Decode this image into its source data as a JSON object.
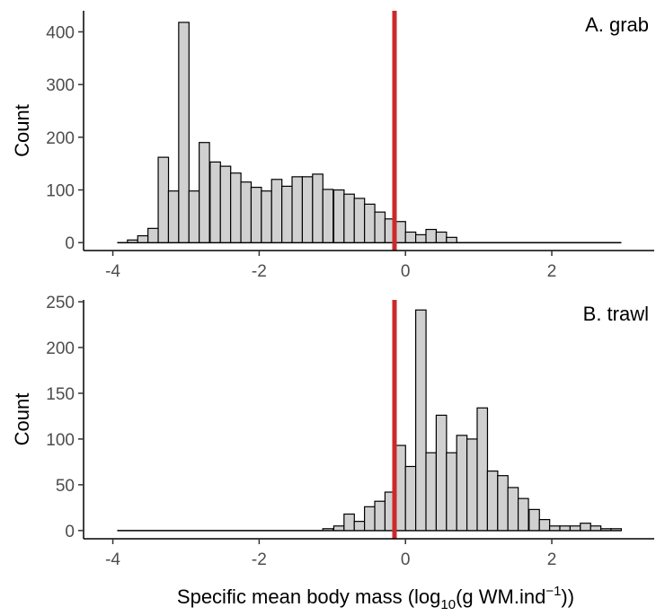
{
  "chart_data": [
    {
      "type": "bar",
      "panel_label": "A. grab",
      "ylabel": "Count",
      "xlim": [
        -4.4,
        3.4
      ],
      "ylim": [
        -15,
        440
      ],
      "x_ticks": [
        -4,
        -2,
        0,
        2
      ],
      "y_ticks": [
        0,
        100,
        200,
        300,
        400
      ],
      "bin_width": 0.141,
      "bins_start": [
        -3.94,
        -3.8,
        -3.66,
        -3.52,
        -3.38,
        -3.24,
        -3.1,
        -2.96,
        -2.82,
        -2.67,
        -2.53,
        -2.39,
        -2.25,
        -2.11,
        -1.97,
        -1.83,
        -1.69,
        -1.55,
        -1.41,
        -1.27,
        -1.13,
        -0.98,
        -0.84,
        -0.7,
        -0.56,
        -0.42,
        -0.28,
        -0.14,
        0.0,
        0.14,
        0.28,
        0.42,
        0.56,
        0.7,
        0.84,
        0.98,
        1.12,
        1.26,
        1.4,
        1.54,
        1.69,
        1.83,
        1.97,
        2.11,
        2.25,
        2.39,
        2.53,
        2.67,
        2.81
      ],
      "counts": [
        0,
        5,
        13,
        27,
        162,
        98,
        418,
        98,
        190,
        153,
        145,
        132,
        115,
        105,
        98,
        120,
        107,
        125,
        125,
        130,
        101,
        100,
        92,
        84,
        73,
        58,
        45,
        40,
        20,
        15,
        25,
        20,
        10,
        0,
        0,
        0,
        0,
        0,
        0,
        0,
        0,
        0,
        0,
        0,
        0,
        0,
        0,
        0,
        0
      ],
      "reference_line_x": -0.15,
      "reference_line_color": "#cc2a2a",
      "bar_fill": "#d0d0d0",
      "bar_stroke": "#000000"
    },
    {
      "type": "bar",
      "panel_label": "B. trawl",
      "ylabel": "Count",
      "xlim": [
        -4.4,
        3.4
      ],
      "ylim": [
        -9,
        252
      ],
      "x_ticks": [
        -4,
        -2,
        0,
        2
      ],
      "y_ticks": [
        0,
        50,
        100,
        150,
        200,
        250
      ],
      "bin_width": 0.141,
      "bins_start": [
        -3.94,
        -3.8,
        -3.66,
        -3.52,
        -3.38,
        -3.24,
        -3.1,
        -2.96,
        -2.82,
        -2.67,
        -2.53,
        -2.39,
        -2.25,
        -2.11,
        -1.97,
        -1.83,
        -1.69,
        -1.55,
        -1.41,
        -1.27,
        -1.13,
        -0.98,
        -0.84,
        -0.7,
        -0.56,
        -0.42,
        -0.28,
        -0.14,
        0.0,
        0.14,
        0.28,
        0.42,
        0.56,
        0.7,
        0.84,
        0.98,
        1.12,
        1.26,
        1.4,
        1.54,
        1.69,
        1.83,
        1.97,
        2.11,
        2.25,
        2.39,
        2.53,
        2.67,
        2.81
      ],
      "counts": [
        0,
        0,
        0,
        0,
        0,
        0,
        0,
        0,
        0,
        0,
        0,
        0,
        0,
        0,
        0,
        0,
        0,
        0,
        0,
        0,
        2,
        5,
        18,
        10,
        26,
        32,
        42,
        93,
        70,
        241,
        85,
        126,
        85,
        104,
        100,
        134,
        65,
        60,
        47,
        35,
        23,
        12,
        5,
        5,
        5,
        8,
        5,
        2,
        2
      ],
      "reference_line_x": -0.15,
      "reference_line_color": "#cc2a2a",
      "bar_fill": "#d0d0d0",
      "bar_stroke": "#000000"
    }
  ],
  "xlabel_main": "Specific mean body mass (log",
  "xlabel_sub": "10",
  "xlabel_mid": "(g WM.ind",
  "xlabel_sup": "−1",
  "xlabel_end": "))"
}
